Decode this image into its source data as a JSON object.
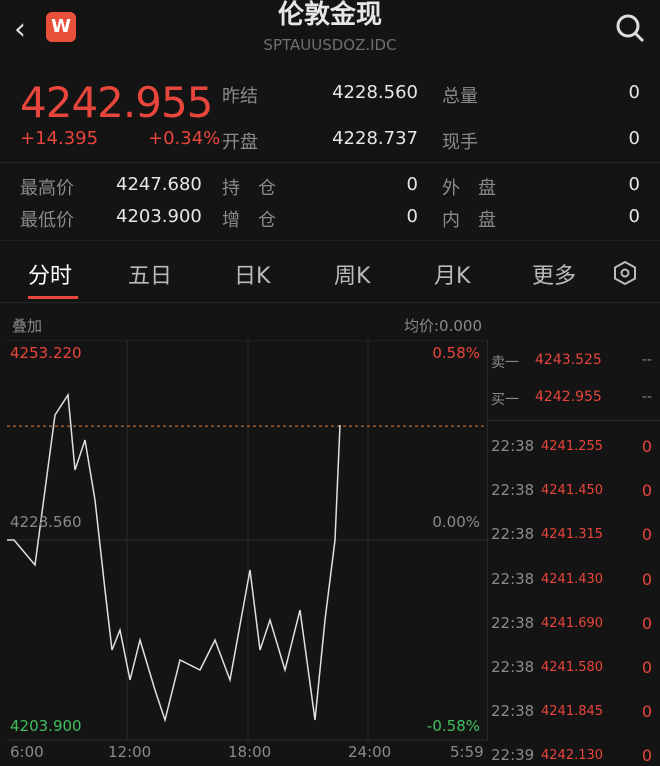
{
  "header": {
    "title": "伦敦金现",
    "code": "SPTAUUSDOZ.IDC",
    "logo": "W",
    "back_icon": "chevron-left-icon",
    "search_icon": "search-icon"
  },
  "quote": {
    "price": "4242.955",
    "change": "+14.395",
    "change_pct": "+0.34%",
    "prev_settle_label": "昨结",
    "prev_settle": "4228.560",
    "total_vol_label": "总量",
    "total_vol": "0",
    "open_label": "开盘",
    "open": "4228.737",
    "cur_vol_label": "现手",
    "cur_vol": "0",
    "high_label": "最高价",
    "high": "4247.680",
    "position_label": "持　仓",
    "position": "0",
    "outer_label": "外　盘",
    "outer": "0",
    "low_label": "最低价",
    "low": "4203.900",
    "add_pos_label": "增　仓",
    "add_pos": "0",
    "inner_label": "内　盘",
    "inner": "0"
  },
  "tabs": [
    {
      "label": "分时",
      "active": true
    },
    {
      "label": "五日"
    },
    {
      "label": "日K"
    },
    {
      "label": "周K"
    },
    {
      "label": "月K"
    },
    {
      "label": "更多"
    }
  ],
  "settings_icon": "settings-hexagon-icon",
  "chart_header": {
    "overlay": "叠加",
    "avg": "均价:0.000"
  },
  "chart_data": {
    "type": "line",
    "ylim": [
      4203.9,
      4253.22
    ],
    "y_labels_left": [
      "4253.220",
      "4228.560",
      "4203.900"
    ],
    "y_labels_right": [
      "0.58%",
      "0.00%",
      "-0.58%"
    ],
    "x_labels": [
      "6:00",
      "12:00",
      "18:00",
      "24:00",
      "5:59"
    ],
    "prev_close": 4228.56,
    "current": 4242.955,
    "series": [
      {
        "points": [
          [
            "06:00",
            4228.56
          ],
          [
            "06:21",
            4228.56
          ],
          [
            "07:24",
            4225.4
          ],
          [
            "07:54",
            4234.88
          ],
          [
            "08:24",
            4244.37
          ],
          [
            "09:03",
            4246.9
          ],
          [
            "09:24",
            4237.41
          ],
          [
            "09:54",
            4241.21
          ],
          [
            "10:24",
            4233.62
          ],
          [
            "10:54",
            4222.24
          ],
          [
            "11:15",
            4214.65
          ],
          [
            "11:39",
            4217.18
          ],
          [
            "12:09",
            4210.86
          ],
          [
            "12:39",
            4215.91
          ],
          [
            "13:24",
            4209.59
          ],
          [
            "13:54",
            4205.8
          ],
          [
            "14:39",
            4213.39
          ],
          [
            "15:39",
            4212.12
          ],
          [
            "16:24",
            4215.91
          ],
          [
            "17:09",
            4210.86
          ],
          [
            "18:09",
            4224.77
          ],
          [
            "18:39",
            4214.65
          ],
          [
            "19:09",
            4218.44
          ],
          [
            "19:54",
            4212.12
          ],
          [
            "20:39",
            4219.71
          ],
          [
            "21:24",
            4205.8
          ],
          [
            "21:54",
            4218.44
          ],
          [
            "22:24",
            4228.56
          ],
          [
            "22:39",
            4243.1
          ]
        ]
      }
    ]
  },
  "order_book": [
    {
      "label": "卖一",
      "price": "4243.525",
      "vol": "--"
    },
    {
      "label": "买一",
      "price": "4242.955",
      "vol": "--"
    }
  ],
  "ticks": [
    {
      "time": "22:38",
      "price": "4241.255",
      "vol": "0"
    },
    {
      "time": "22:38",
      "price": "4241.450",
      "vol": "0"
    },
    {
      "time": "22:38",
      "price": "4241.315",
      "vol": "0"
    },
    {
      "time": "22:38",
      "price": "4241.430",
      "vol": "0"
    },
    {
      "time": "22:38",
      "price": "4241.690",
      "vol": "0"
    },
    {
      "time": "22:38",
      "price": "4241.580",
      "vol": "0"
    },
    {
      "time": "22:38",
      "price": "4241.845",
      "vol": "0"
    },
    {
      "time": "22:39",
      "price": "4242.130",
      "vol": "0"
    }
  ],
  "colors": {
    "up": "#e8453c",
    "down": "#3fbf5f",
    "line": "#e0e0e0",
    "current_line": "#e8803c"
  }
}
